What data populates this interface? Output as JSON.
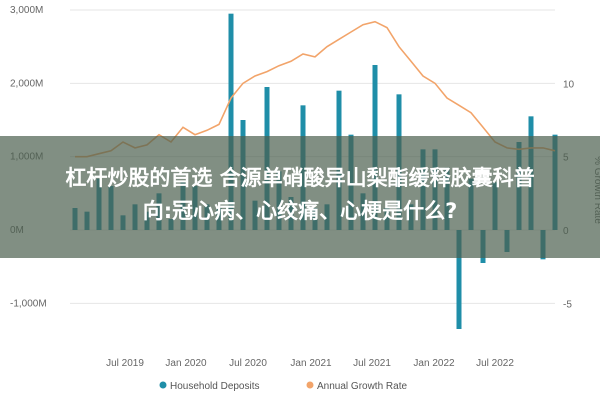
{
  "chart_data": {
    "type": "bar",
    "title": "",
    "xlabel": "",
    "ylabel_left": "",
    "ylabel_right": "% Growth Rate",
    "left_axis": {
      "min": -1500,
      "max": 3000,
      "ticks": [
        3000,
        2000,
        1000,
        0,
        -1000
      ],
      "tick_labels": [
        "3,000M",
        "2,000M",
        "1,000M",
        "0M",
        "-1,000M"
      ]
    },
    "right_axis": {
      "min": -7.5,
      "max": 15,
      "ticks": [
        10,
        5,
        0,
        -5
      ],
      "tick_labels": [
        "10",
        "5",
        "0",
        "-5"
      ]
    },
    "x_ticks": [
      "Jul 2019",
      "Jan 2020",
      "Jul 2020",
      "Jan 2021",
      "Jul 2021",
      "Jan 2022",
      "Jul 2022"
    ],
    "grid": true,
    "legend": "bottom",
    "series": [
      {
        "name": "Household Deposits",
        "kind": "bar",
        "axis": "left",
        "values": [
          300,
          250,
          700,
          600,
          200,
          350,
          250,
          500,
          150,
          650,
          600,
          350,
          300,
          2950,
          1500,
          400,
          1950,
          800,
          450,
          1700,
          300,
          350,
          1900,
          1300,
          500,
          2250,
          300,
          1850,
          350,
          1100,
          1100,
          850,
          -1350,
          700,
          -450,
          650,
          -300,
          1200,
          1550,
          -400,
          1300
        ]
      },
      {
        "name": "Annual Growth Rate",
        "kind": "line",
        "axis": "right",
        "values": [
          5.0,
          5.0,
          5.2,
          5.4,
          6.0,
          5.6,
          5.8,
          6.5,
          6.0,
          7.0,
          6.5,
          6.8,
          7.2,
          9.0,
          10.0,
          10.5,
          10.8,
          11.2,
          11.5,
          12.0,
          11.8,
          12.5,
          13.0,
          13.5,
          14.0,
          14.2,
          13.8,
          12.5,
          11.5,
          10.5,
          10.0,
          9.0,
          8.5,
          8.0,
          7.0,
          6.0,
          5.6,
          5.5,
          5.6,
          5.6,
          5.4
        ]
      }
    ],
    "colors": {
      "bars": "#1f8ea8",
      "line": "#f2a46a",
      "grid": "#e6e6e6"
    }
  },
  "overlay": {
    "line1": "杠杆炒股的首选 合源单硝酸异山梨酯缓释胶囊科普",
    "line2": "向:冠心病、心绞痛、心梗是什么?"
  }
}
